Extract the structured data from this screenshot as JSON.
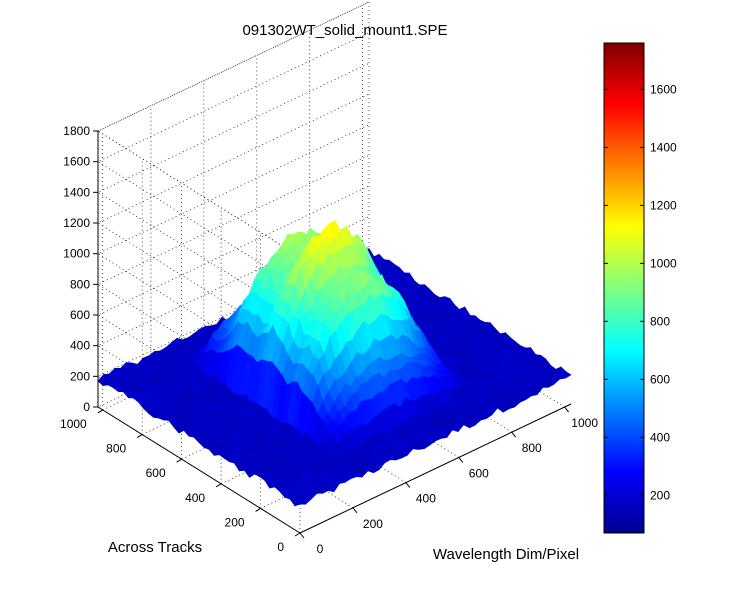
{
  "chart_data": {
    "type": "surface3d",
    "title": "091302WT_solid_mount1.SPE",
    "xlabel": "Wavelength Dim/Pixel",
    "ylabel": "Across Tracks",
    "zlabel": "",
    "xlim": [
      0,
      1024
    ],
    "ylim": [
      0,
      1024
    ],
    "zlim": [
      0,
      1800
    ],
    "x_ticks": [
      "0",
      "200",
      "400",
      "600",
      "800",
      "1000"
    ],
    "y_ticks": [
      "0",
      "200",
      "400",
      "600",
      "800",
      "1000"
    ],
    "z_ticks": [
      "0",
      "200",
      "400",
      "600",
      "800",
      "1000",
      "1200",
      "1400",
      "1600",
      "1800"
    ],
    "colorbar_ticks": [
      "200",
      "400",
      "600",
      "800",
      "1000",
      "1200",
      "1400",
      "1600"
    ],
    "colorbar_range": [
      70,
      1760
    ],
    "colormap": "jet",
    "grid": true,
    "background_level": 180,
    "peak": {
      "x_center": 520,
      "x_left_edge": 260,
      "x_right_edge": 800,
      "max_value": 1160,
      "y_center": 540,
      "y_width": 760
    }
  }
}
